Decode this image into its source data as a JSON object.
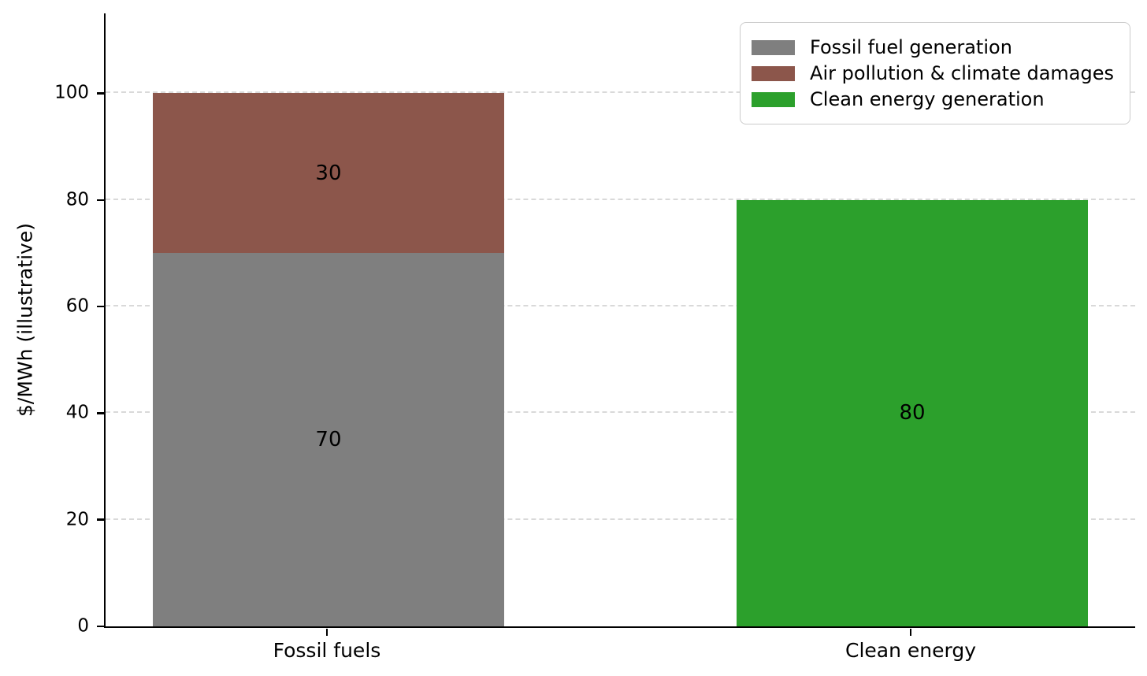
{
  "chart_data": {
    "type": "bar",
    "stacked": true,
    "title": "",
    "xlabel": "",
    "ylabel": "$/MWh (illustrative)",
    "categories": [
      "Fossil fuels",
      "Clean energy"
    ],
    "series": [
      {
        "name": "Fossil fuel generation",
        "color": "#7f7f7f",
        "values": [
          70,
          0
        ]
      },
      {
        "name": "Air pollution & climate damages",
        "color": "#8c564b",
        "values": [
          30,
          0
        ]
      },
      {
        "name": "Clean energy generation",
        "color": "#2ca02c",
        "values": [
          0,
          80
        ]
      }
    ],
    "segment_value_labels": {
      "Fossil fuels": [
        70,
        30
      ],
      "Clean energy": [
        80
      ]
    },
    "stack_totals": [
      100,
      80
    ],
    "yticks": [
      0,
      20,
      40,
      60,
      80,
      100
    ],
    "ylim": [
      0,
      115
    ],
    "grid": "horizontal-dashed",
    "legend_position": "upper-right",
    "background_color": "#ffffff",
    "axis_color": "#000000",
    "gridline_color": "#d9d9d9"
  }
}
